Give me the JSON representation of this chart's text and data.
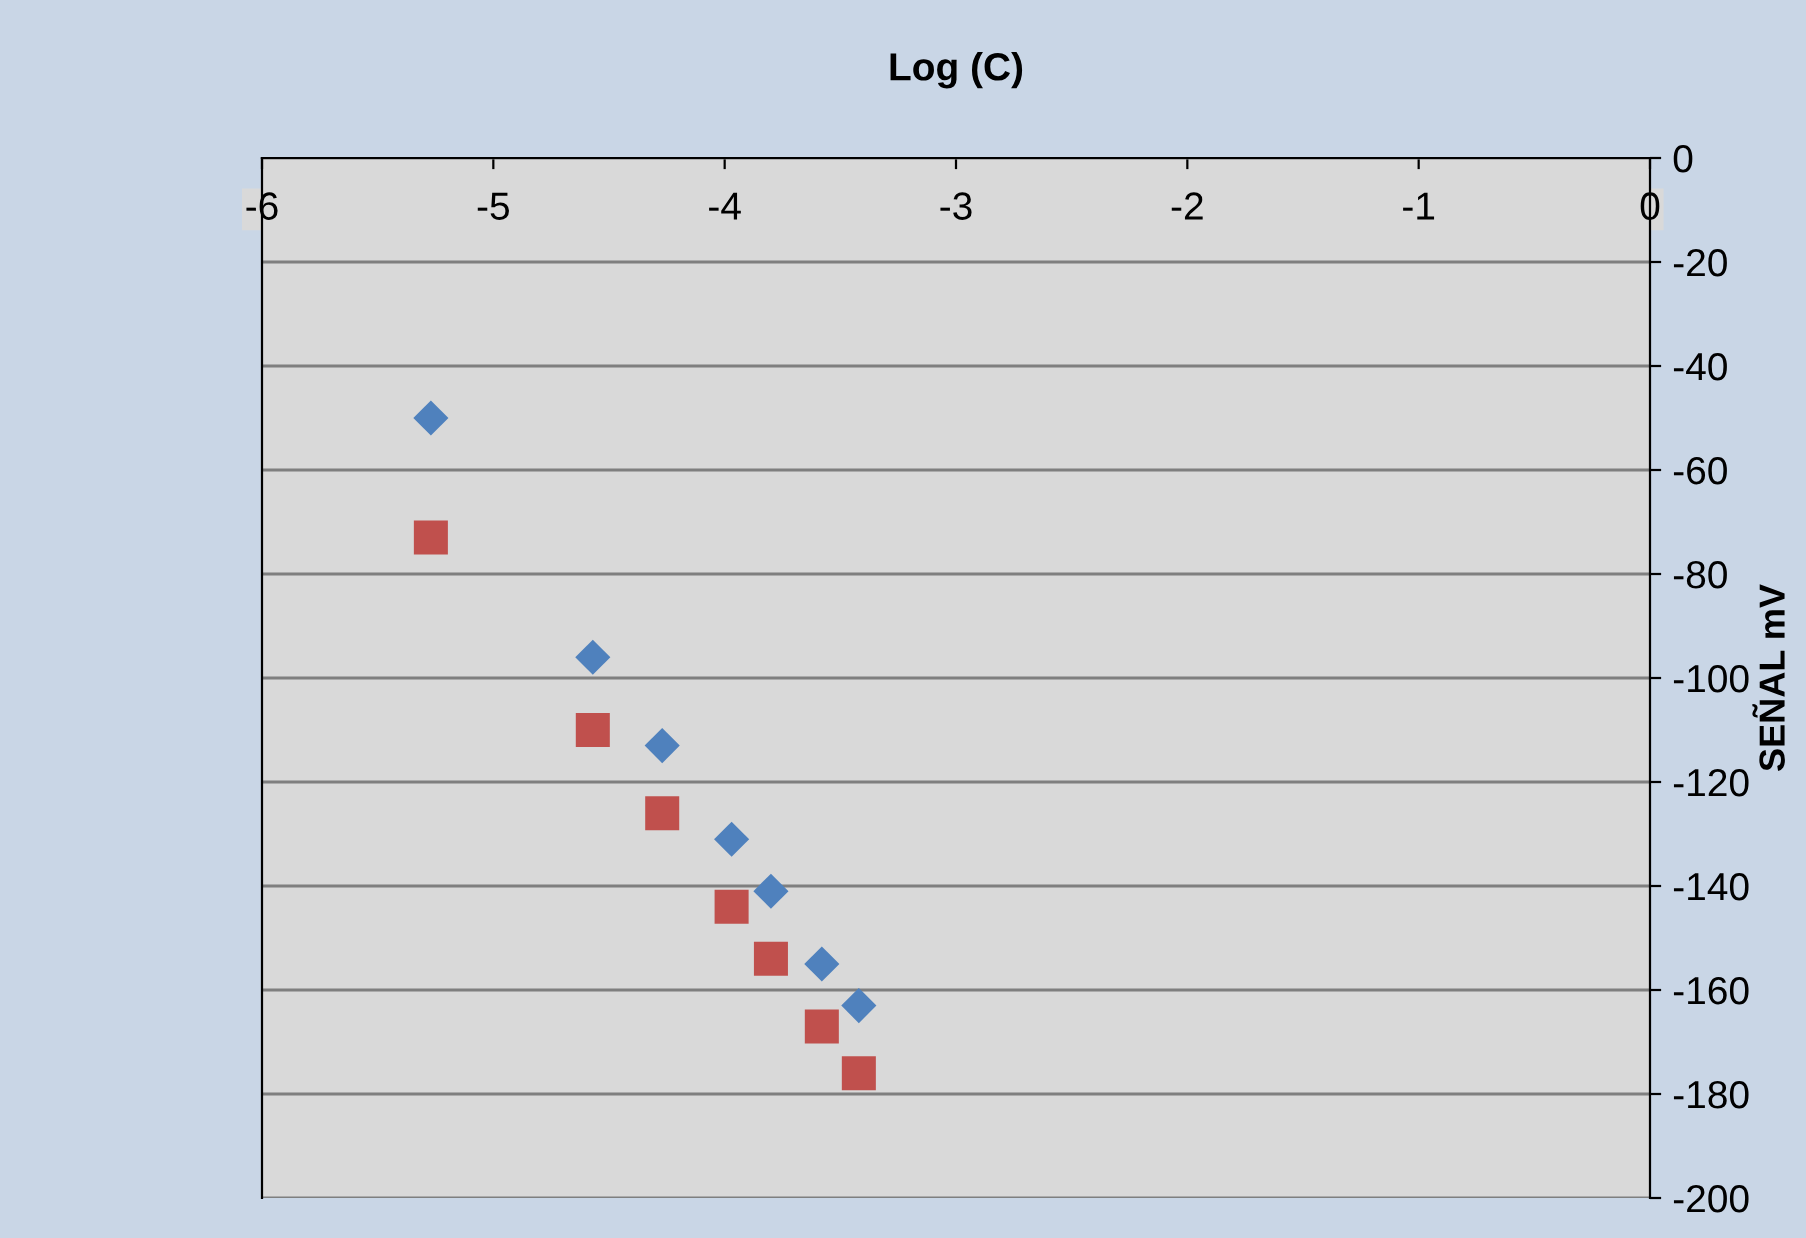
{
  "chart_data": {
    "type": "scatter",
    "xlabel": "Log (C)",
    "ylabel": "SEÑAL mV",
    "series": [
      {
        "color": "#4f81bd",
        "marker": "diamond",
        "x": [
          -5.27,
          -4.57,
          -4.27,
          -3.97,
          -3.8,
          -3.58,
          -3.42
        ],
        "values": [
          -50,
          -96,
          -113,
          -131,
          -141,
          -155,
          -163
        ]
      },
      {
        "color": "#c0504d",
        "marker": "square",
        "x": [
          -5.27,
          -4.57,
          -4.27,
          -3.97,
          -3.8,
          -3.58,
          -3.42
        ],
        "values": [
          -73,
          -110,
          -126,
          -144,
          -154,
          -167,
          -176
        ]
      }
    ],
    "xlim": [
      -6,
      0
    ],
    "xticks": [
      -6,
      -5,
      -4,
      -3,
      -2,
      -1,
      0
    ],
    "ylim": [
      -200,
      0
    ],
    "yticks": [
      -200,
      -180,
      -160,
      -140,
      -120,
      -100,
      -80,
      -60,
      -40,
      -20,
      0
    ],
    "grid": "y",
    "legend": false
  }
}
